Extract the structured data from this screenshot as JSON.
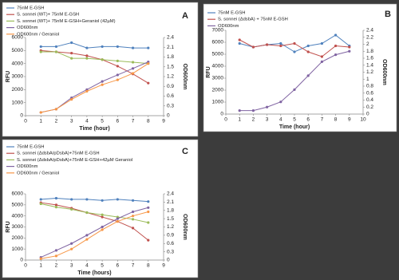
{
  "chart_data": [
    {
      "type": "line",
      "title": "A",
      "xlabel": "Time (hour)",
      "ylabel": "RFU",
      "y2label": "OD600nm",
      "x": [
        1,
        2,
        3,
        4,
        5,
        6,
        7,
        8
      ],
      "xlim": [
        0,
        9
      ],
      "xticks": [
        0,
        1,
        2,
        3,
        4,
        5,
        6,
        7,
        8,
        9
      ],
      "ylim": [
        0,
        6000
      ],
      "yticks": [
        0,
        1000,
        2000,
        3000,
        4000,
        5000,
        6000
      ],
      "y2lim": [
        0,
        2.4
      ],
      "y2ticks": [
        0,
        0.3,
        0.6,
        0.9,
        1.2,
        1.5,
        1.8,
        2.1,
        2.4
      ],
      "series": [
        {
          "name": "75nM E-GSH",
          "color": "#4f81bd",
          "values": [
            5300,
            5300,
            5600,
            5200,
            5300,
            5300,
            5200,
            5200
          ]
        },
        {
          "name": "S. sonnei (WT)+ 75nM E-GSH",
          "color": "#c0504d",
          "values": [
            5000,
            4900,
            4800,
            4600,
            4300,
            3800,
            3200,
            2500
          ]
        },
        {
          "name": "S. sonnei (WT)+ 75nM E-GSH+Geraniol (42µM)",
          "color": "#9bbb59",
          "values": [
            4900,
            4900,
            4400,
            4400,
            4300,
            4200,
            4100,
            4000
          ]
        },
        {
          "name": "OD600nm",
          "color": "#8064a2",
          "axis": "y2",
          "values": [
            0.1,
            0.2,
            0.55,
            0.8,
            1.05,
            1.25,
            1.45,
            1.65
          ]
        },
        {
          "name": "OD600nm / Geraniol",
          "color": "#f79646",
          "axis": "y2",
          "values": [
            0.1,
            0.2,
            0.5,
            0.75,
            0.95,
            1.1,
            1.3,
            1.6
          ]
        }
      ]
    },
    {
      "type": "line",
      "title": "B",
      "xlabel": "Time (hour)",
      "ylabel": "RFU",
      "y2label": "OD600nm",
      "x": [
        1,
        2,
        3,
        4,
        5,
        6,
        7,
        8,
        9
      ],
      "xlim": [
        0,
        10
      ],
      "xticks": [
        0,
        1,
        2,
        3,
        4,
        5,
        6,
        7,
        8,
        9,
        10
      ],
      "ylim": [
        0,
        7000
      ],
      "yticks": [
        0,
        1000,
        2000,
        3000,
        4000,
        5000,
        6000,
        7000
      ],
      "y2lim": [
        0,
        2.4
      ],
      "y2ticks": [
        0,
        0.2,
        0.4,
        0.6,
        0.8,
        1,
        1.2,
        1.4,
        1.6,
        1.8,
        2,
        2.2,
        2.4
      ],
      "series": [
        {
          "name": "75nM E-GSH",
          "color": "#4f81bd",
          "values": [
            5900,
            5600,
            5800,
            5900,
            5200,
            5700,
            5900,
            6600,
            5700
          ]
        },
        {
          "name": "S. sonnei (ΔdsbA) + 75nM E-GSH",
          "color": "#c0504d",
          "values": [
            6200,
            5600,
            5800,
            5700,
            5900,
            5200,
            4800,
            5700,
            5600
          ]
        },
        {
          "name": "OD600nm",
          "color": "#8064a2",
          "axis": "y2",
          "values": [
            0.1,
            0.1,
            0.2,
            0.35,
            0.7,
            1.1,
            1.5,
            1.7,
            1.8
          ]
        }
      ]
    },
    {
      "type": "line",
      "title": "C",
      "xlabel": "Time (hours)",
      "ylabel": "RFU",
      "y2label": "OD600nm",
      "x": [
        1,
        2,
        3,
        4,
        5,
        6,
        7,
        8
      ],
      "xlim": [
        0,
        9
      ],
      "xticks": [
        0,
        1,
        2,
        3,
        4,
        5,
        6,
        7,
        8,
        9
      ],
      "ylim": [
        0,
        6000
      ],
      "yticks": [
        0,
        1000,
        2000,
        3000,
        4000,
        5000,
        6000
      ],
      "y2lim": [
        0,
        2.4
      ],
      "y2ticks": [
        0,
        0.3,
        0.6,
        0.9,
        1.2,
        1.5,
        1.8,
        2.1,
        2.4
      ],
      "series": [
        {
          "name": "75nM E-GSH",
          "color": "#4f81bd",
          "values": [
            5500,
            5600,
            5500,
            5500,
            5400,
            5500,
            5400,
            5300
          ]
        },
        {
          "name": "S. sonnei (ΔdsbA/pDsbA)+75nM  E-GSH",
          "color": "#c0504d",
          "values": [
            5200,
            5000,
            4700,
            4300,
            3900,
            3500,
            2900,
            1800
          ]
        },
        {
          "name": "S. sonnei (ΔdsbA/pDsbA)+75nM  E-GSH+42µM Geraniol",
          "color": "#9bbb59",
          "values": [
            5100,
            4800,
            4600,
            4300,
            4100,
            3900,
            3700,
            3400
          ]
        },
        {
          "name": "OD600nm",
          "color": "#8064a2",
          "axis": "y2",
          "values": [
            0.1,
            0.35,
            0.6,
            0.9,
            1.2,
            1.5,
            1.75,
            1.9
          ]
        },
        {
          "name": "OD600nm / Geraniol",
          "color": "#f79646",
          "axis": "y2",
          "values": [
            0.05,
            0.15,
            0.4,
            0.75,
            1.1,
            1.4,
            1.6,
            1.75
          ]
        }
      ]
    }
  ]
}
